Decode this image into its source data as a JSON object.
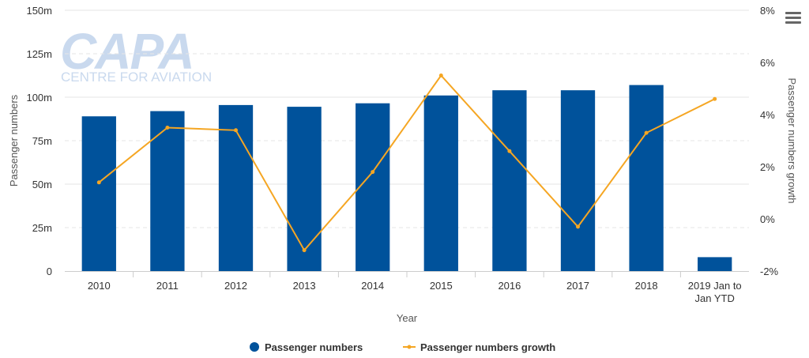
{
  "watermark": {
    "brand": "CAPA",
    "tagline": "CENTRE FOR AVIATION"
  },
  "chart_data": {
    "type": "bar",
    "categories": [
      "2010",
      "2011",
      "2012",
      "2013",
      "2014",
      "2015",
      "2016",
      "2017",
      "2018",
      "2019 Jan to Jan YTD"
    ],
    "series": [
      {
        "name": "Passenger numbers",
        "type": "bar",
        "axis": "left",
        "color": "#00529b",
        "values": [
          89,
          92,
          95.5,
          94.5,
          96.5,
          101,
          104,
          104,
          107,
          8
        ]
      },
      {
        "name": "Passenger numbers growth",
        "type": "line",
        "axis": "right",
        "color": "#f5a623",
        "values": [
          1.4,
          3.5,
          3.4,
          -1.2,
          1.8,
          5.5,
          2.6,
          -0.3,
          3.3,
          4.6
        ]
      }
    ],
    "xlabel": "Year",
    "ylabel": "Passenger numbers",
    "y2label": "Passenger numbers growth",
    "ylim": [
      0,
      150
    ],
    "y2lim": [
      -2,
      8
    ],
    "yticks": [
      "0",
      "25m",
      "50m",
      "75m",
      "100m",
      "125m",
      "150m"
    ],
    "y2ticks": [
      "-2%",
      "0%",
      "2%",
      "4%",
      "6%",
      "8%"
    ],
    "grid": true,
    "legend": "bottom-center"
  }
}
